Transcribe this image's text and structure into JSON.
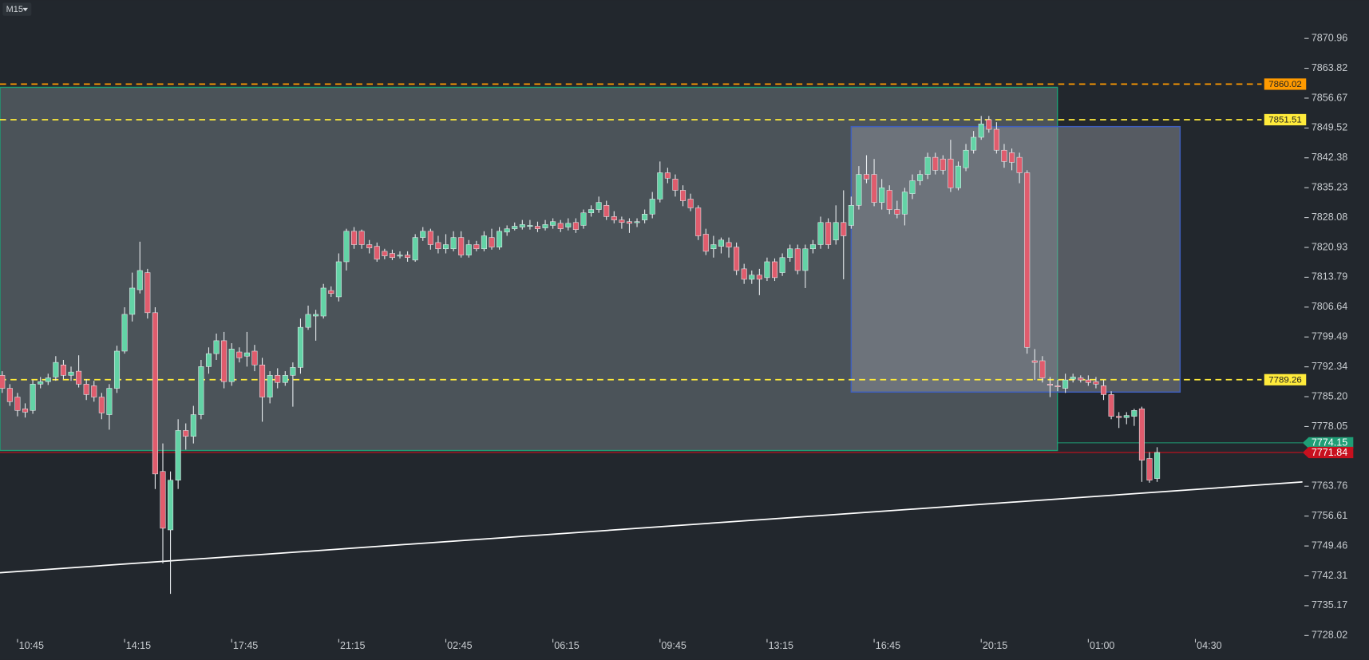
{
  "chart_data": {
    "type": "candlestick",
    "timeframe": "M15",
    "candles": [
      [
        7790.3,
        7791.3,
        7786.1,
        7787.2
      ],
      [
        7787.2,
        7788.2,
        7783.0,
        7784.0
      ],
      [
        7785.1,
        7786.1,
        7780.5,
        7781.9
      ],
      [
        7782.3,
        7783.6,
        7780.2,
        7781.5
      ],
      [
        7781.9,
        7789.2,
        7781.1,
        7788.2
      ],
      [
        7788.2,
        7789.9,
        7787.2,
        7788.8
      ],
      [
        7788.8,
        7790.7,
        7788.0,
        7789.7
      ],
      [
        7789.9,
        7794.9,
        7789.0,
        7793.4
      ],
      [
        7792.8,
        7794.0,
        7789.4,
        7790.3
      ],
      [
        7790.3,
        7792.4,
        7789.0,
        7791.1
      ],
      [
        7791.3,
        7795.1,
        7787.4,
        7788.2
      ],
      [
        7788.2,
        7789.4,
        7784.4,
        7785.7
      ],
      [
        7787.8,
        7789.0,
        7784.0,
        7785.1
      ],
      [
        7785.1,
        7786.1,
        7779.8,
        7781.3
      ],
      [
        7780.9,
        7788.2,
        7777.3,
        7787.2
      ],
      [
        7787.2,
        7797.4,
        7786.1,
        7796.1
      ],
      [
        7796.1,
        7806.6,
        7795.5,
        7804.9
      ],
      [
        7804.9,
        7814.9,
        7803.2,
        7811.2
      ],
      [
        7810.8,
        7822.3,
        7809.9,
        7815.4
      ],
      [
        7814.9,
        7815.8,
        7803.9,
        7805.3
      ],
      [
        7805.3,
        7806.6,
        7763.1,
        7766.7
      ],
      [
        7767.3,
        7774.0,
        7745.3,
        7753.7
      ],
      [
        7753.3,
        7767.3,
        7738.0,
        7765.2
      ],
      [
        7765.2,
        7779.8,
        7763.1,
        7777.1
      ],
      [
        7777.1,
        7778.8,
        7772.5,
        7775.7
      ],
      [
        7775.7,
        7783.0,
        7774.0,
        7780.9
      ],
      [
        7780.9,
        7794.0,
        7779.8,
        7792.4
      ],
      [
        7792.4,
        7797.0,
        7790.7,
        7795.5
      ],
      [
        7795.5,
        7800.3,
        7794.0,
        7798.6
      ],
      [
        7798.6,
        7800.7,
        7787.2,
        7788.8
      ],
      [
        7788.8,
        7798.0,
        7787.8,
        7796.6
      ],
      [
        7795.9,
        7797.0,
        7793.4,
        7794.5
      ],
      [
        7794.9,
        7800.7,
        7792.4,
        7795.7
      ],
      [
        7796.1,
        7797.6,
        7791.3,
        7792.8
      ],
      [
        7792.8,
        7794.5,
        7779.2,
        7785.1
      ],
      [
        7785.1,
        7791.3,
        7783.6,
        7790.3
      ],
      [
        7790.3,
        7792.0,
        7787.2,
        7788.6
      ],
      [
        7788.6,
        7791.3,
        7787.8,
        7790.3
      ],
      [
        7790.3,
        7793.4,
        7782.8,
        7792.2
      ],
      [
        7792.2,
        7803.9,
        7790.7,
        7801.8
      ],
      [
        7801.8,
        7807.0,
        7801.2,
        7804.9
      ],
      [
        7804.5,
        7806.0,
        7798.6,
        7804.9
      ],
      [
        7804.5,
        7812.2,
        7803.9,
        7811.2
      ],
      [
        7810.6,
        7811.6,
        7809.1,
        7809.9
      ],
      [
        7809.1,
        7819.5,
        7808.0,
        7817.5
      ],
      [
        7817.5,
        7825.4,
        7815.4,
        7824.8
      ],
      [
        7824.8,
        7825.8,
        7820.6,
        7821.6
      ],
      [
        7824.8,
        7825.2,
        7820.6,
        7821.6
      ],
      [
        7821.6,
        7822.7,
        7819.5,
        7820.8
      ],
      [
        7821.2,
        7822.1,
        7817.5,
        7818.1
      ],
      [
        7820.0,
        7820.6,
        7818.1,
        7818.9
      ],
      [
        7819.5,
        7820.4,
        7817.9,
        7818.5
      ],
      [
        7818.9,
        7820.0,
        7818.3,
        7819.1
      ],
      [
        7819.1,
        7820.0,
        7817.5,
        7818.5
      ],
      [
        7817.9,
        7824.1,
        7817.5,
        7823.3
      ],
      [
        7823.3,
        7825.8,
        7822.5,
        7824.8
      ],
      [
        7824.8,
        7825.4,
        7820.4,
        7821.6
      ],
      [
        7822.1,
        7823.7,
        7819.5,
        7820.6
      ],
      [
        7820.6,
        7824.1,
        7819.5,
        7821.6
      ],
      [
        7820.6,
        7824.8,
        7820.0,
        7823.3
      ],
      [
        7823.3,
        7824.8,
        7818.5,
        7819.1
      ],
      [
        7819.1,
        7822.7,
        7818.5,
        7821.6
      ],
      [
        7821.6,
        7822.5,
        7820.0,
        7820.6
      ],
      [
        7820.6,
        7824.8,
        7820.0,
        7823.7
      ],
      [
        7823.3,
        7825.4,
        7820.4,
        7821.0
      ],
      [
        7821.0,
        7825.8,
        7820.4,
        7824.8
      ],
      [
        7824.6,
        7826.2,
        7823.7,
        7825.4
      ],
      [
        7825.4,
        7826.9,
        7825.0,
        7826.0
      ],
      [
        7825.8,
        7827.5,
        7825.2,
        7826.4
      ],
      [
        7826.2,
        7827.5,
        7825.2,
        7826.2
      ],
      [
        7826.0,
        7827.1,
        7824.6,
        7825.4
      ],
      [
        7825.6,
        7827.5,
        7825.0,
        7826.4
      ],
      [
        7826.2,
        7827.9,
        7825.4,
        7827.1
      ],
      [
        7826.7,
        7827.5,
        7824.6,
        7825.4
      ],
      [
        7825.8,
        7827.9,
        7825.0,
        7826.7
      ],
      [
        7826.9,
        7827.9,
        7824.4,
        7825.2
      ],
      [
        7826.2,
        7830.0,
        7825.4,
        7829.2
      ],
      [
        7829.2,
        7831.0,
        7828.3,
        7830.0
      ],
      [
        7830.0,
        7833.1,
        7829.2,
        7831.7
      ],
      [
        7831.0,
        7832.1,
        7827.5,
        7828.3
      ],
      [
        7828.3,
        7829.6,
        7826.7,
        7827.5
      ],
      [
        7827.5,
        7828.3,
        7825.4,
        7826.9
      ],
      [
        7827.1,
        7827.9,
        7824.4,
        7826.7
      ],
      [
        7826.9,
        7827.9,
        7825.8,
        7827.1
      ],
      [
        7827.5,
        7830.0,
        7826.7,
        7828.9
      ],
      [
        7828.9,
        7834.2,
        7827.9,
        7832.5
      ],
      [
        7832.5,
        7841.5,
        7831.7,
        7838.8
      ],
      [
        7838.8,
        7840.0,
        7836.3,
        7837.5
      ],
      [
        7837.3,
        7838.4,
        7833.1,
        7834.6
      ],
      [
        7834.6,
        7835.8,
        7830.8,
        7832.1
      ],
      [
        7832.5,
        7833.8,
        7829.6,
        7830.4
      ],
      [
        7830.4,
        7831.0,
        7822.7,
        7823.7
      ],
      [
        7824.1,
        7825.4,
        7819.1,
        7820.0
      ],
      [
        7820.6,
        7823.7,
        7818.5,
        7821.6
      ],
      [
        7821.2,
        7823.3,
        7819.5,
        7822.7
      ],
      [
        7822.1,
        7823.3,
        7818.5,
        7821.0
      ],
      [
        7821.0,
        7822.1,
        7814.3,
        7815.4
      ],
      [
        7815.8,
        7817.0,
        7812.2,
        7813.3
      ],
      [
        7813.3,
        7815.4,
        7812.2,
        7814.3
      ],
      [
        7814.3,
        7815.8,
        7809.5,
        7813.3
      ],
      [
        7813.7,
        7818.5,
        7812.9,
        7817.5
      ],
      [
        7817.5,
        7818.3,
        7812.9,
        7813.7
      ],
      [
        7814.9,
        7819.5,
        7814.1,
        7818.5
      ],
      [
        7818.5,
        7821.6,
        7817.5,
        7820.6
      ],
      [
        7820.6,
        7821.6,
        7814.5,
        7815.4
      ],
      [
        7815.4,
        7821.6,
        7811.2,
        7820.6
      ],
      [
        7820.6,
        7822.7,
        7819.5,
        7821.6
      ],
      [
        7821.6,
        7828.3,
        7820.6,
        7826.9
      ],
      [
        7826.9,
        7827.9,
        7820.6,
        7821.6
      ],
      [
        7822.7,
        7831.0,
        7821.6,
        7826.9
      ],
      [
        7826.9,
        7834.6,
        7813.3,
        7823.7
      ],
      [
        7826.2,
        7833.1,
        7825.4,
        7831.0
      ],
      [
        7831.0,
        7840.4,
        7830.0,
        7838.4
      ],
      [
        7838.4,
        7843.0,
        7836.3,
        7837.3
      ],
      [
        7838.4,
        7842.1,
        7830.8,
        7831.7
      ],
      [
        7831.7,
        7837.3,
        7830.0,
        7835.2
      ],
      [
        7834.6,
        7835.8,
        7828.9,
        7830.0
      ],
      [
        7830.0,
        7832.1,
        7827.9,
        7828.9
      ],
      [
        7828.9,
        7835.2,
        7826.2,
        7834.2
      ],
      [
        7833.8,
        7838.4,
        7832.5,
        7836.9
      ],
      [
        7836.9,
        7839.4,
        7835.8,
        7838.4
      ],
      [
        7838.4,
        7843.6,
        7837.3,
        7842.5
      ],
      [
        7842.5,
        7843.6,
        7838.4,
        7839.4
      ],
      [
        7842.1,
        7843.0,
        7838.4,
        7839.4
      ],
      [
        7842.1,
        7846.7,
        7834.2,
        7835.2
      ],
      [
        7835.2,
        7841.5,
        7834.6,
        7840.4
      ],
      [
        7840.0,
        7845.7,
        7839.2,
        7844.2
      ],
      [
        7844.2,
        7848.8,
        7843.4,
        7847.3
      ],
      [
        7847.3,
        7852.4,
        7846.7,
        7850.5
      ],
      [
        7851.5,
        7852.4,
        7848.4,
        7849.2
      ],
      [
        7849.2,
        7850.9,
        7843.4,
        7844.2
      ],
      [
        7844.2,
        7845.7,
        7840.0,
        7841.5
      ],
      [
        7843.6,
        7844.6,
        7839.4,
        7841.3
      ],
      [
        7842.5,
        7843.6,
        7836.3,
        7838.8
      ],
      [
        7838.8,
        7839.4,
        7795.5,
        7797.0
      ],
      [
        7793.8,
        7796.6,
        7789.2,
        7793.4
      ],
      [
        7793.8,
        7794.9,
        7788.6,
        7789.7
      ],
      [
        7788.2,
        7789.9,
        7785.1,
        7788.0
      ],
      [
        7787.8,
        7789.2,
        7786.5,
        7787.6
      ],
      [
        7787.2,
        7790.7,
        7786.1,
        7789.2
      ],
      [
        7789.4,
        7790.7,
        7788.6,
        7789.9
      ],
      [
        7789.7,
        7790.3,
        7788.6,
        7789.2
      ],
      [
        7789.2,
        7790.3,
        7787.8,
        7788.6
      ],
      [
        7788.8,
        7789.9,
        7787.2,
        7788.2
      ],
      [
        7787.8,
        7789.2,
        7784.4,
        7785.7
      ],
      [
        7785.7,
        7786.5,
        7779.8,
        7780.5
      ],
      [
        7780.5,
        7781.5,
        7777.7,
        7780.2
      ],
      [
        7780.2,
        7781.5,
        7778.6,
        7780.7
      ],
      [
        7780.5,
        7782.3,
        7778.2,
        7781.9
      ],
      [
        7782.3,
        7782.8,
        7764.8,
        7770.0
      ],
      [
        7770.4,
        7771.9,
        7764.6,
        7765.2
      ],
      [
        7765.6,
        7773.1,
        7764.8,
        7771.84
      ]
    ],
    "xlim": [
      -0.29,
      178.7
    ],
    "xticks": [
      {
        "value": 2,
        "label": "10:45"
      },
      {
        "value": 16,
        "label": "14:15"
      },
      {
        "value": 30,
        "label": "17:45"
      },
      {
        "value": 44,
        "label": "21:15"
      },
      {
        "value": 58,
        "label": "02:45"
      },
      {
        "value": 72,
        "label": "06:15"
      },
      {
        "value": 86,
        "label": "09:45"
      },
      {
        "value": 100,
        "label": "13:15"
      },
      {
        "value": 114,
        "label": "16:45"
      },
      {
        "value": 128,
        "label": "20:15"
      },
      {
        "value": 142,
        "label": "01:00"
      },
      {
        "value": 156,
        "label": "04:30"
      }
    ],
    "ylim": [
      7722.17,
      7880.15
    ],
    "yticks": [
      7870.96,
      7863.82,
      7856.67,
      7849.52,
      7842.38,
      7835.23,
      7828.08,
      7820.93,
      7813.79,
      7806.64,
      7799.49,
      7792.34,
      {
        "value": 7785.2,
        "label": "7785.20"
      },
      7778.05,
      7763.76,
      7756.61,
      7749.46,
      7742.31,
      7735.17,
      7728.02
    ],
    "colors": {
      "up": "#63d3a6",
      "down": "#e05c6d"
    },
    "levels": [
      {
        "value": 7860.02,
        "color": "#ff9a00"
      },
      {
        "value": 7851.51,
        "color": "#ffeb3b"
      },
      {
        "value": 7789.26,
        "color": "#ffeb3b"
      }
    ],
    "price_lines": [
      {
        "value": 7774.15,
        "color": "#1f9e76"
      },
      {
        "value": 7771.84,
        "color": "#c8101e"
      }
    ],
    "rectangles": [
      {
        "x": [
          -0.29,
          137.96
        ],
        "y": [
          7772.31,
          7859.25
        ],
        "fill": "#4b5359",
        "stroke": "#1e9e74"
      },
      {
        "x": [
          111.0,
          154.0
        ],
        "y": [
          7786.3,
          7849.85
        ],
        "fill": "rgba(150,155,165,0.45)",
        "stroke": "#3f5fbf"
      }
    ],
    "trendline": {
      "x": [
        -0.29,
        170.0
      ],
      "y": [
        7743.05,
        7764.78
      ],
      "color": "#ffffff"
    }
  }
}
